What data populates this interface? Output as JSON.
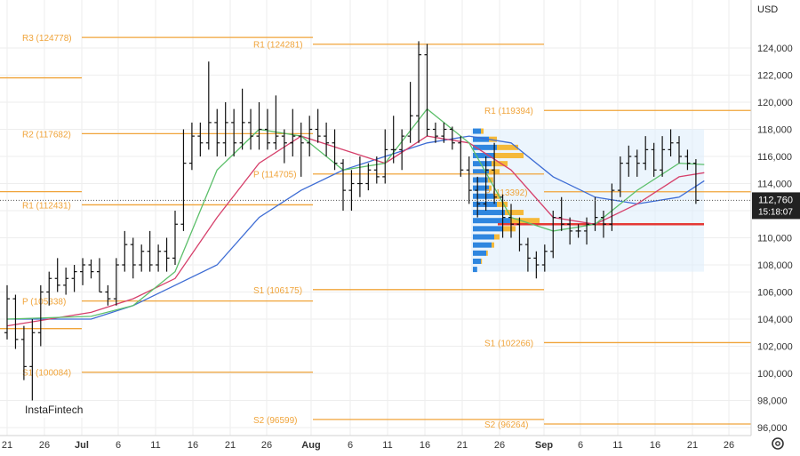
{
  "currency": "USD",
  "brand": "InstaFintech",
  "price_axis": {
    "labels": [
      "124,000",
      "122,000",
      "120,000",
      "118,000",
      "116,000",
      "114,000",
      "112,000",
      "110,000",
      "108,000",
      "106,000",
      "104,000",
      "102,000",
      "100,000",
      "98,000",
      "96,000"
    ],
    "last_price": "112,760",
    "countdown": "15:18:07"
  },
  "time_axis": {
    "labels": [
      "21",
      "26",
      "Jul",
      "6",
      "11",
      "16",
      "21",
      "26",
      "Aug",
      "6",
      "11",
      "16",
      "21",
      "26",
      "Sep",
      "6",
      "11",
      "16",
      "21",
      "26"
    ]
  },
  "colors": {
    "pivot": "#f0a43a",
    "ma_fast": "#5cbf6a",
    "ma_mid": "#d6406b",
    "ma_slow": "#3d6cd4",
    "poc": "#e53935",
    "vp_blue": "#2f86df",
    "vp_orange": "#f5b93a",
    "box": "#dcecfb"
  },
  "chart_data": {
    "type": "candlestick",
    "y_range": [
      95500,
      126500
    ],
    "x_ticks": [
      "21",
      "26",
      "Jul",
      "6",
      "11",
      "16",
      "21",
      "26",
      "Aug",
      "6",
      "11",
      "16",
      "21",
      "26",
      "Sep",
      "6",
      "11",
      "16",
      "21",
      "26"
    ],
    "pivot_levels": [
      {
        "label": "R3 (124778)",
        "value": 124778,
        "period": "Jul"
      },
      {
        "label": "R2 (117682)",
        "value": 117682,
        "period": "Jul"
      },
      {
        "label": "R1 (112431)",
        "value": 112431,
        "period": "Jul"
      },
      {
        "label": "P (105338)",
        "value": 105338,
        "period": "Jul"
      },
      {
        "label": "S1 (100084)",
        "value": 100084,
        "period": "Jul"
      },
      {
        "label": "R1 (124281)",
        "value": 124281,
        "period": "Aug"
      },
      {
        "label": "P (114705)",
        "value": 114705,
        "period": "Aug"
      },
      {
        "label": "S1 (106175)",
        "value": 106175,
        "period": "Aug"
      },
      {
        "label": "S2 (96599)",
        "value": 96599,
        "period": "Aug"
      },
      {
        "label": "R1 (119394)",
        "value": 119394,
        "period": "Sep"
      },
      {
        "label": "P (113392)",
        "value": 113392,
        "period": "Sep"
      },
      {
        "label": "S1 (102266)",
        "value": 102266,
        "period": "Sep"
      },
      {
        "label": "S2 (96264)",
        "value": 96264,
        "period": "Sep"
      }
    ],
    "poc_price": 111000,
    "last_price": 112760,
    "bars": [
      [
        103000,
        106500,
        102500,
        105500
      ],
      [
        105500,
        105800,
        101800,
        102500
      ],
      [
        102500,
        103500,
        99500,
        100500
      ],
      [
        100500,
        104000,
        98000,
        103000
      ],
      [
        103000,
        106500,
        102000,
        106000
      ],
      [
        106000,
        107500,
        105000,
        107000
      ],
      [
        107000,
        108500,
        106000,
        106500
      ],
      [
        106500,
        107800,
        105800,
        107000
      ],
      [
        107000,
        108000,
        106000,
        107500
      ],
      [
        107500,
        108500,
        106500,
        108000
      ],
      [
        108000,
        108400,
        107000,
        107500
      ],
      [
        107500,
        108500,
        106000,
        106000
      ],
      [
        106000,
        106500,
        105000,
        105500
      ],
      [
        105500,
        108500,
        105000,
        108000
      ],
      [
        108000,
        110500,
        107500,
        109500
      ],
      [
        109500,
        110000,
        107000,
        108000
      ],
      [
        108000,
        109500,
        107500,
        109000
      ],
      [
        109000,
        110500,
        107500,
        108000
      ],
      [
        108000,
        109500,
        107500,
        109000
      ],
      [
        109000,
        110000,
        107500,
        108500
      ],
      [
        108500,
        112000,
        108000,
        111000
      ],
      [
        111000,
        118000,
        110500,
        115500
      ],
      [
        115500,
        118500,
        115000,
        117500
      ],
      [
        117500,
        118500,
        116000,
        117000
      ],
      [
        117000,
        123000,
        116500,
        118500
      ],
      [
        118500,
        119500,
        116000,
        117000
      ],
      [
        117000,
        120000,
        116000,
        118500
      ],
      [
        118500,
        119500,
        116000,
        117000
      ],
      [
        117000,
        121000,
        116500,
        118500
      ],
      [
        118500,
        119500,
        116500,
        117500
      ],
      [
        117500,
        120000,
        116500,
        118000
      ],
      [
        118000,
        119500,
        116500,
        117000
      ],
      [
        117000,
        120500,
        116500,
        117500
      ],
      [
        117500,
        118000,
        115500,
        117000
      ],
      [
        117000,
        119500,
        116000,
        117500
      ],
      [
        117500,
        118500,
        114500,
        117000
      ],
      [
        117000,
        119000,
        116000,
        118000
      ],
      [
        118000,
        119500,
        117000,
        117500
      ],
      [
        117500,
        118500,
        116000,
        117000
      ],
      [
        117000,
        118000,
        115000,
        115500
      ],
      [
        115500,
        115800,
        112000,
        113500
      ],
      [
        113500,
        115000,
        112000,
        114000
      ],
      [
        114000,
        116000,
        113000,
        114000
      ],
      [
        114000,
        115500,
        113500,
        115000
      ],
      [
        115000,
        116000,
        114000,
        114500
      ],
      [
        114500,
        118000,
        114000,
        116500
      ],
      [
        116500,
        119000,
        115500,
        116500
      ],
      [
        116500,
        118000,
        115000,
        117500
      ],
      [
        117500,
        121500,
        117000,
        119000
      ],
      [
        119000,
        124500,
        117000,
        123500
      ],
      [
        123500,
        124300,
        117500,
        118000
      ],
      [
        118000,
        118500,
        117000,
        117500
      ],
      [
        117500,
        118500,
        117000,
        118000
      ],
      [
        118000,
        118200,
        116500,
        117000
      ],
      [
        117000,
        117500,
        114500,
        115000
      ],
      [
        115000,
        116000,
        112500,
        113500
      ],
      [
        113500,
        114500,
        111500,
        112500
      ],
      [
        112500,
        116000,
        112000,
        115000
      ],
      [
        115000,
        117000,
        112500,
        113000
      ],
      [
        113000,
        113200,
        110000,
        111500
      ],
      [
        111500,
        112500,
        110000,
        111000
      ],
      [
        111000,
        111500,
        109000,
        109500
      ],
      [
        109500,
        110000,
        107500,
        108500
      ],
      [
        108500,
        109000,
        107000,
        108000
      ],
      [
        108000,
        109500,
        107500,
        109000
      ],
      [
        109000,
        112000,
        108500,
        111500
      ],
      [
        111500,
        113000,
        110500,
        111000
      ],
      [
        111000,
        111500,
        109500,
        110500
      ],
      [
        110500,
        111000,
        110000,
        110500
      ],
      [
        110500,
        111500,
        109500,
        111000
      ],
      [
        111000,
        113000,
        110500,
        111500
      ],
      [
        111500,
        112000,
        110000,
        111000
      ],
      [
        111000,
        114000,
        110500,
        113500
      ],
      [
        113500,
        116000,
        113000,
        115500
      ],
      [
        115500,
        116800,
        114500,
        116000
      ],
      [
        116000,
        116500,
        114500,
        115500
      ],
      [
        115500,
        117500,
        115000,
        116500
      ],
      [
        116500,
        117000,
        114500,
        115000
      ],
      [
        115000,
        117500,
        114500,
        116500
      ],
      [
        116500,
        118000,
        116000,
        117000
      ],
      [
        117000,
        117500,
        115500,
        116000
      ],
      [
        116000,
        116500,
        115000,
        115500
      ],
      [
        115500,
        115800,
        112500,
        112760
      ]
    ],
    "ma_fast": [
      [
        0,
        104000
      ],
      [
        10,
        104200
      ],
      [
        15,
        105000
      ],
      [
        20,
        107500
      ],
      [
        25,
        115000
      ],
      [
        30,
        118000
      ],
      [
        35,
        117500
      ],
      [
        40,
        115000
      ],
      [
        45,
        115500
      ],
      [
        50,
        119500
      ],
      [
        55,
        117000
      ],
      [
        60,
        111500
      ],
      [
        65,
        110500
      ],
      [
        70,
        111000
      ],
      [
        75,
        113500
      ],
      [
        80,
        115500
      ],
      [
        83,
        115400
      ]
    ],
    "ma_mid": [
      [
        0,
        103500
      ],
      [
        10,
        104500
      ],
      [
        15,
        105500
      ],
      [
        20,
        107000
      ],
      [
        25,
        111500
      ],
      [
        30,
        115500
      ],
      [
        35,
        117500
      ],
      [
        40,
        116500
      ],
      [
        45,
        115500
      ],
      [
        50,
        117500
      ],
      [
        55,
        117000
      ],
      [
        60,
        115000
      ],
      [
        65,
        111500
      ],
      [
        70,
        111000
      ],
      [
        75,
        112500
      ],
      [
        80,
        114500
      ],
      [
        83,
        114800
      ]
    ],
    "ma_slow": [
      [
        0,
        104000
      ],
      [
        10,
        104000
      ],
      [
        15,
        105000
      ],
      [
        20,
        106500
      ],
      [
        25,
        108000
      ],
      [
        30,
        111500
      ],
      [
        35,
        113500
      ],
      [
        40,
        115000
      ],
      [
        45,
        116000
      ],
      [
        50,
        117000
      ],
      [
        55,
        117500
      ],
      [
        60,
        117000
      ],
      [
        65,
        114500
      ],
      [
        70,
        113000
      ],
      [
        75,
        112500
      ],
      [
        80,
        113000
      ],
      [
        83,
        114200
      ]
    ],
    "volume_profile": [
      {
        "price": 117800,
        "buy": 0.15,
        "sell": 0.05
      },
      {
        "price": 117200,
        "buy": 0.3,
        "sell": 0.15
      },
      {
        "price": 116600,
        "buy": 0.45,
        "sell": 0.4
      },
      {
        "price": 116000,
        "buy": 0.4,
        "sell": 0.55
      },
      {
        "price": 115400,
        "buy": 0.35,
        "sell": 0.3
      },
      {
        "price": 114800,
        "buy": 0.3,
        "sell": 0.2
      },
      {
        "price": 114200,
        "buy": 0.28,
        "sell": 0.1
      },
      {
        "price": 113600,
        "buy": 0.3,
        "sell": 0.05
      },
      {
        "price": 113000,
        "buy": 0.4,
        "sell": 0.1
      },
      {
        "price": 112400,
        "buy": 0.45,
        "sell": 0.2
      },
      {
        "price": 111800,
        "buy": 0.6,
        "sell": 0.35
      },
      {
        "price": 111200,
        "buy": 0.7,
        "sell": 0.55
      },
      {
        "price": 110600,
        "buy": 0.55,
        "sell": 0.25
      },
      {
        "price": 110000,
        "buy": 0.4,
        "sell": 0.1
      },
      {
        "price": 109400,
        "buy": 0.35,
        "sell": 0.05
      },
      {
        "price": 108800,
        "buy": 0.25,
        "sell": 0.03
      },
      {
        "price": 108200,
        "buy": 0.15,
        "sell": 0.02
      },
      {
        "price": 107600,
        "buy": 0.08,
        "sell": 0.0
      }
    ]
  }
}
